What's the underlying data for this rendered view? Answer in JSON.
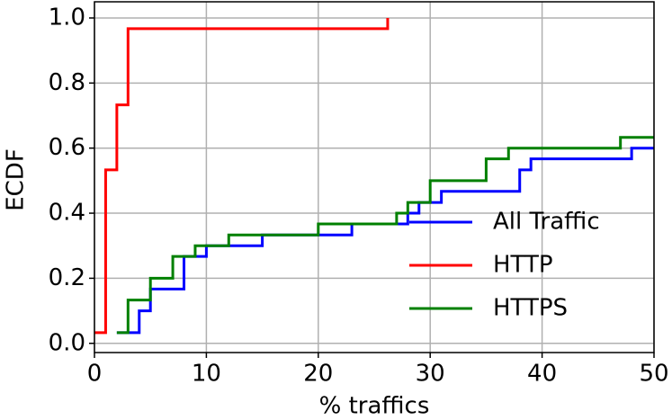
{
  "chart_data": {
    "type": "step",
    "xlabel": "% traffics",
    "ylabel": "ECDF",
    "xlim": [
      0,
      50
    ],
    "ylim": [
      -0.0283,
      1.0497
    ],
    "xticks": [
      0,
      10,
      20,
      30,
      40,
      50
    ],
    "yticks": [
      {
        "value": 0,
        "label": "0.0"
      },
      0.2,
      0.4,
      0.6,
      0.8,
      {
        "value": 1,
        "label": "1.0"
      }
    ],
    "grid": true,
    "legend": "center right",
    "series": [
      {
        "name": "All Traffic",
        "color": "#0000ff",
        "x": [
          2,
          4,
          5,
          8,
          10,
          15,
          23,
          28,
          29,
          31,
          38,
          39,
          48,
          50
        ],
        "values": [
          0.033,
          0.1,
          0.167,
          0.267,
          0.3,
          0.333,
          0.367,
          0.4,
          0.433,
          0.467,
          0.533,
          0.567,
          0.6,
          0.6
        ]
      },
      {
        "name": "HTTP",
        "color": "#ff0000",
        "x": [
          0,
          1,
          2,
          3,
          26.2
        ],
        "values": [
          0.033,
          0.533,
          0.733,
          0.967,
          1.0
        ]
      },
      {
        "name": "HTTPS",
        "color": "#008000",
        "x": [
          2,
          3,
          5,
          7,
          9,
          12,
          20,
          27,
          28,
          30,
          35,
          37,
          47,
          50
        ],
        "values": [
          0.033,
          0.133,
          0.2,
          0.267,
          0.3,
          0.333,
          0.367,
          0.4,
          0.433,
          0.5,
          0.567,
          0.6,
          0.633,
          0.633
        ]
      }
    ]
  }
}
